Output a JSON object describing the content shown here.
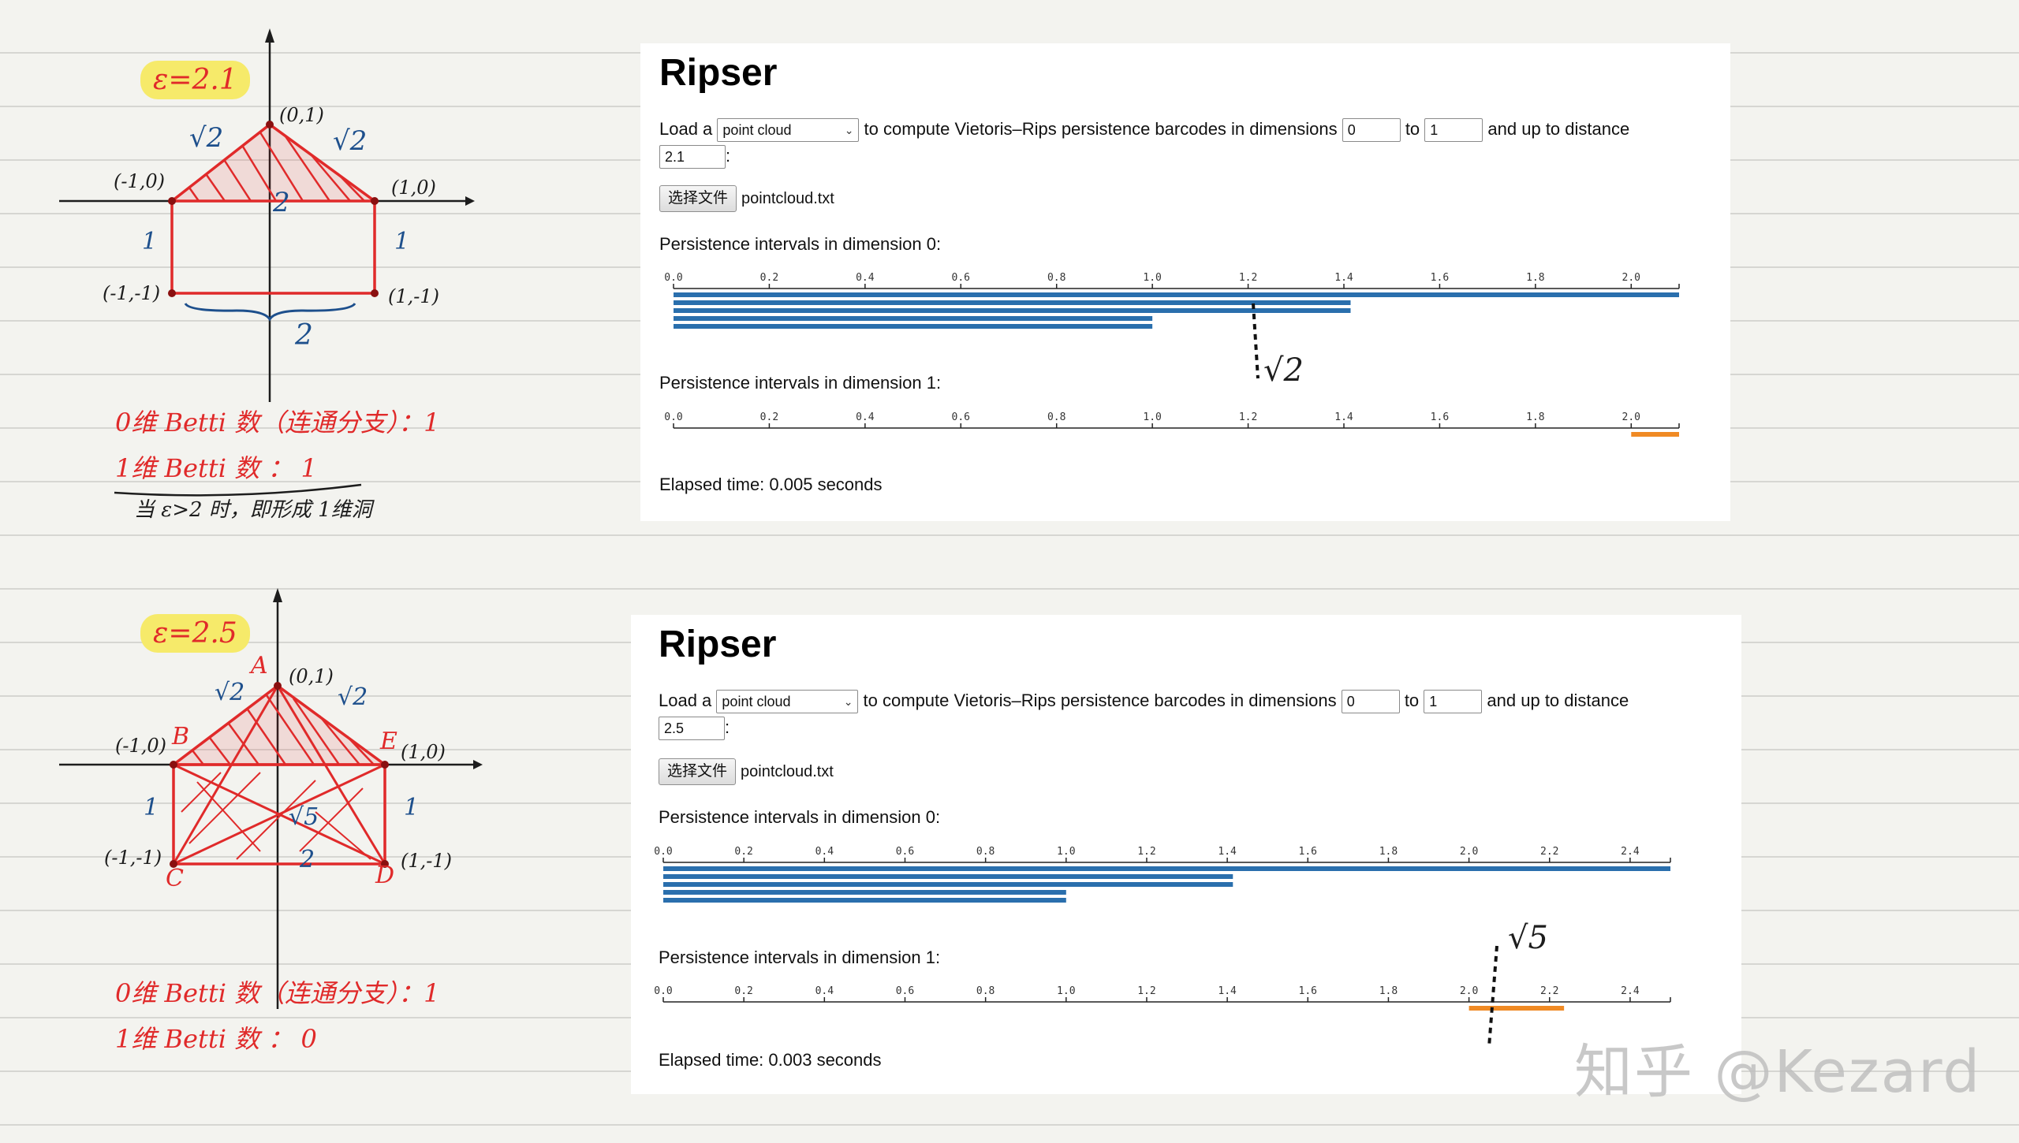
{
  "colors": {
    "dim0_bar": "#2a6fad",
    "dim1_bar": "#f08a24",
    "ink_red": "#e02a2a",
    "ink_blue": "#1d4f8c",
    "ink_black": "#1d1d1d",
    "highlight": "#f6ea6a"
  },
  "sketches": [
    {
      "epsilon": "ε=2.1",
      "side_labels": [
        "√2",
        "√2",
        "2",
        "1",
        "1",
        "2"
      ],
      "vertex_labels": [
        "(0,1)",
        "(-1,0)",
        "(1,0)",
        "(-1,-1)",
        "(1,-1)"
      ],
      "betti_0": "0维 Betti 数（连通分支）：1",
      "betti_1": "1维 Betti 数 ： 1",
      "note": "当 ε>2 时，即形成 1维洞",
      "annotation": "√2"
    },
    {
      "epsilon": "ε=2.5",
      "side_labels": [
        "√2",
        "√2",
        "√5",
        "1",
        "1",
        "2"
      ],
      "vertex_labels": [
        "(0,1)",
        "(-1,0)",
        "(1,0)",
        "(-1,-1)",
        "(1,-1)"
      ],
      "letters": [
        "A",
        "B",
        "E",
        "C",
        "D"
      ],
      "betti_0": "0维 Betti 数（连通分支）：1",
      "betti_1": "1维 Betti 数 ： 0",
      "annotation": "√5"
    }
  ],
  "panels": [
    {
      "title": "Ripser",
      "load_prefix": "Load a",
      "load_select": "point cloud",
      "mid_text": "to compute Vietoris–Rips persistence barcodes in dimensions",
      "dim_from": "0",
      "to_text": "to",
      "dim_to": "1",
      "distance_text": "and up to distance",
      "distance": "2.1",
      "colon": ":",
      "file_button": "选择文件",
      "file_name": "pointcloud.txt",
      "dim0_label": "Persistence intervals in dimension 0:",
      "dim1_label": "Persistence intervals in dimension 1:",
      "elapsed": "Elapsed time: 0.005 seconds"
    },
    {
      "title": "Ripser",
      "load_prefix": "Load a",
      "load_select": "point cloud",
      "mid_text": "to compute Vietoris–Rips persistence barcodes in dimensions",
      "dim_from": "0",
      "to_text": "to",
      "dim_to": "1",
      "distance_text": "and up to distance",
      "distance": "2.5",
      "colon": ":",
      "file_button": "选择文件",
      "file_name": "pointcloud.txt",
      "dim0_label": "Persistence intervals in dimension 0:",
      "dim1_label": "Persistence intervals in dimension 1:",
      "elapsed": "Elapsed time: 0.003 seconds"
    }
  ],
  "chart_data": [
    {
      "type": "barcode",
      "title": "Persistence intervals in dimension 0:",
      "x_ticks": [
        "0.0",
        "0.2",
        "0.4",
        "0.6",
        "0.8",
        "1.0",
        "1.2",
        "1.4",
        "1.6",
        "1.8",
        "2.0"
      ],
      "xlim": [
        0,
        2.1
      ],
      "intervals": [
        [
          0,
          2.1
        ],
        [
          0,
          1.414
        ],
        [
          0,
          1.414
        ],
        [
          0,
          1.0
        ],
        [
          0,
          1.0
        ]
      ]
    },
    {
      "type": "barcode",
      "title": "Persistence intervals in dimension 1:",
      "x_ticks": [
        "0.0",
        "0.2",
        "0.4",
        "0.6",
        "0.8",
        "1.0",
        "1.2",
        "1.4",
        "1.6",
        "1.8",
        "2.0"
      ],
      "xlim": [
        0,
        2.1
      ],
      "intervals": [
        [
          2.0,
          2.1
        ]
      ]
    },
    {
      "type": "barcode",
      "title": "Persistence intervals in dimension 0:",
      "x_ticks": [
        "0.0",
        "0.2",
        "0.4",
        "0.6",
        "0.8",
        "1.0",
        "1.2",
        "1.4",
        "1.6",
        "1.8",
        "2.0",
        "2.2",
        "2.4"
      ],
      "xlim": [
        0,
        2.5
      ],
      "intervals": [
        [
          0,
          2.5
        ],
        [
          0,
          1.414
        ],
        [
          0,
          1.414
        ],
        [
          0,
          1.0
        ],
        [
          0,
          1.0
        ]
      ]
    },
    {
      "type": "barcode",
      "title": "Persistence intervals in dimension 1:",
      "x_ticks": [
        "0.0",
        "0.2",
        "0.4",
        "0.6",
        "0.8",
        "1.0",
        "1.2",
        "1.4",
        "1.6",
        "1.8",
        "2.0",
        "2.2",
        "2.4"
      ],
      "xlim": [
        0,
        2.5
      ],
      "intervals": [
        [
          2.0,
          2.236
        ]
      ]
    }
  ],
  "watermark": "知乎 @Kezard"
}
